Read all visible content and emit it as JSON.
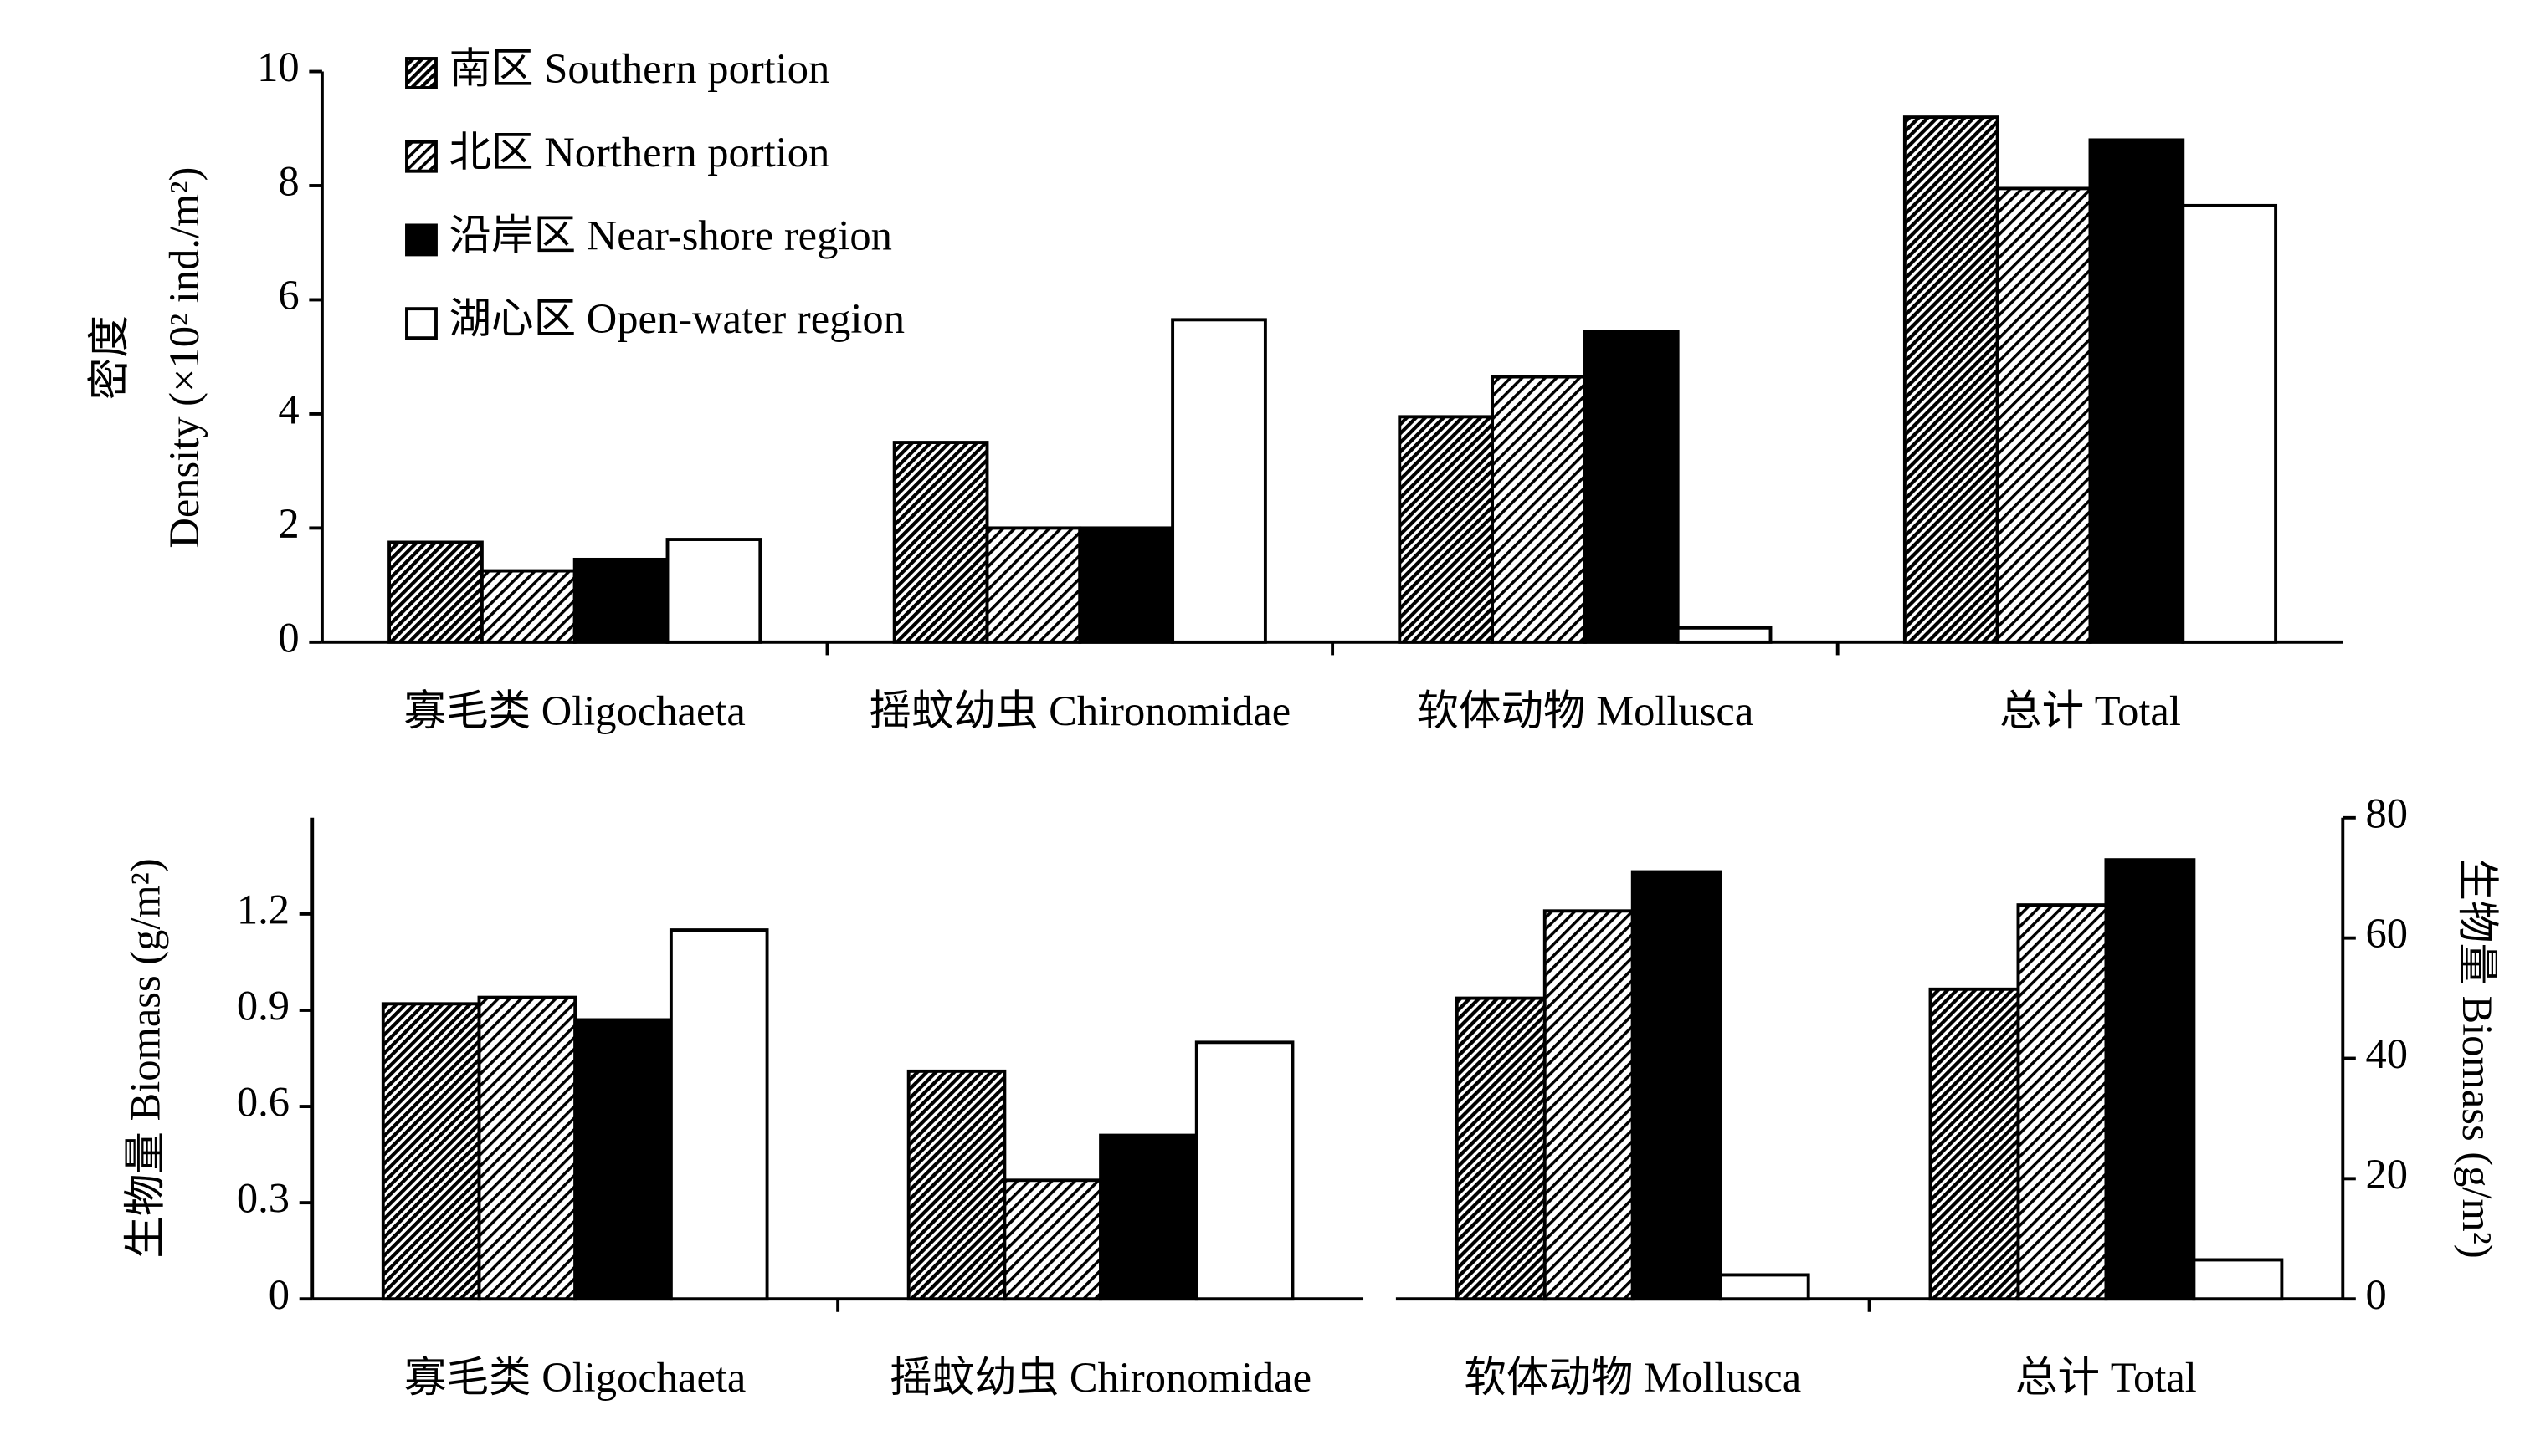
{
  "chart_data": [
    {
      "type": "bar",
      "categories": [
        "寡毛类 Oligochaeta",
        "摇蚊幼虫 Chironomidae",
        "软体动物 Mollusca",
        "总计 Total"
      ],
      "series": [
        {
          "name": "南区 Southern portion",
          "fill": "dense-hatch",
          "values": [
            1.75,
            3.5,
            3.95,
            9.2
          ]
        },
        {
          "name": "北区 Northern portion",
          "fill": "hatch",
          "values": [
            1.25,
            2.0,
            4.65,
            7.95
          ]
        },
        {
          "name": "沿岸区 Near-shore region",
          "fill": "black",
          "values": [
            1.45,
            2.0,
            5.45,
            8.8
          ]
        },
        {
          "name": "湖心区 Open-water region",
          "fill": "white",
          "values": [
            1.8,
            5.65,
            0.25,
            7.65
          ]
        }
      ],
      "ylim": [
        0,
        10
      ],
      "yticks": [
        0,
        2,
        4,
        6,
        8,
        10
      ],
      "ylabel": [
        "密度",
        "Density (×10² ind./m²)"
      ],
      "y_axis": "left",
      "legend": "upper-left"
    },
    {
      "type": "bar",
      "categories": [
        "寡毛类 Oligochaeta",
        "摇蚊幼虫 Chironomidae"
      ],
      "series": [
        {
          "fill": "dense-hatch",
          "values": [
            0.92,
            0.71
          ]
        },
        {
          "fill": "hatch",
          "values": [
            0.94,
            0.37
          ]
        },
        {
          "fill": "black",
          "values": [
            0.87,
            0.51
          ]
        },
        {
          "fill": "white",
          "values": [
            1.15,
            0.8
          ]
        }
      ],
      "ylim": [
        0,
        1.5
      ],
      "yticks": [
        0,
        0.3,
        0.6,
        0.9,
        1.2
      ],
      "ylabel": [
        "生物量 Biomass (g/m²)"
      ],
      "y_axis": "left"
    },
    {
      "type": "bar",
      "categories": [
        "软体动物 Mollusca",
        "总计 Total"
      ],
      "series": [
        {
          "fill": "dense-hatch",
          "values": [
            50,
            51.5
          ]
        },
        {
          "fill": "hatch",
          "values": [
            64.5,
            65.5
          ]
        },
        {
          "fill": "black",
          "values": [
            71,
            73
          ]
        },
        {
          "fill": "white",
          "values": [
            4,
            6.5
          ]
        }
      ],
      "ylim": [
        0,
        80
      ],
      "yticks": [
        0,
        20,
        40,
        60,
        80
      ],
      "ylabel": [
        "生物量 Biomass (g/m²)"
      ],
      "y_axis": "right"
    }
  ]
}
